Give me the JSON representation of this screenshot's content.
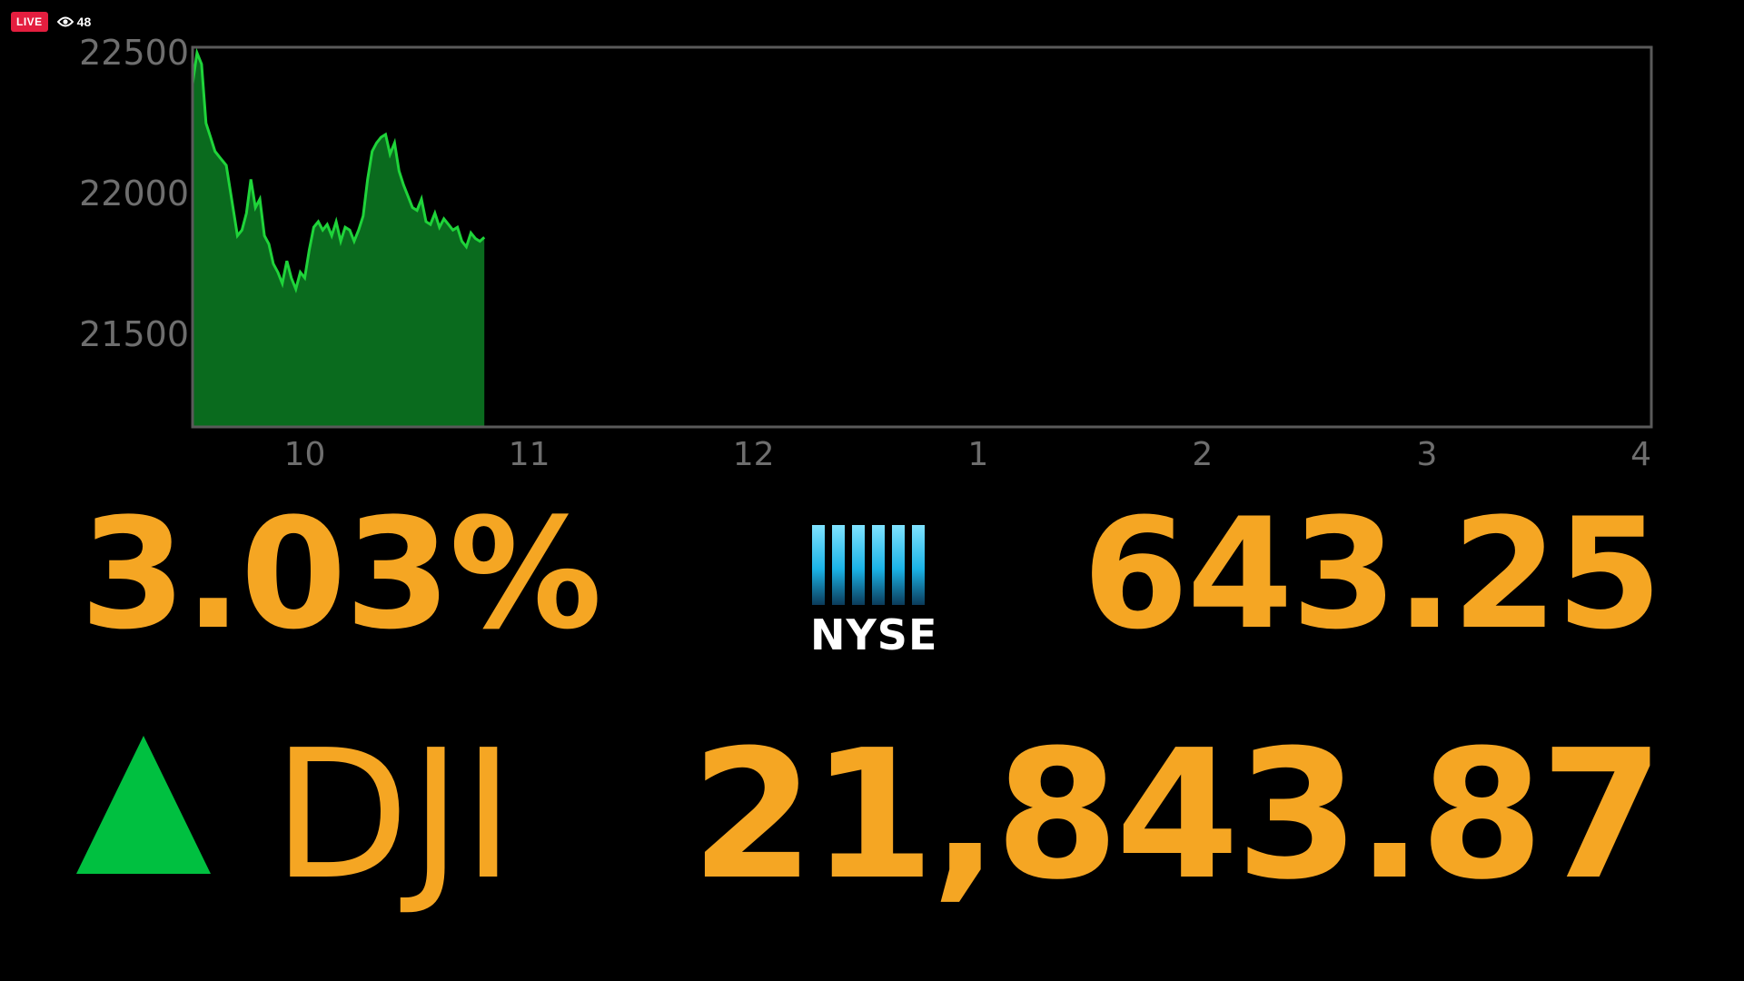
{
  "overlay": {
    "live_label": "LIVE",
    "viewer_count": "48"
  },
  "ticker": {
    "percent_change": "3.03%",
    "exchange_logo_text": "NYSE",
    "point_change": "643.25",
    "symbol": "DJI",
    "price": "21,843.87",
    "direction": "up",
    "up_color": "#00c040",
    "text_color": "#f5a623"
  },
  "chart_data": {
    "type": "area",
    "title": "",
    "xlabel": "",
    "ylabel": "",
    "x_ticks": [
      "10",
      "11",
      "12",
      "1",
      "2",
      "3",
      "4"
    ],
    "x_tick_values": [
      10,
      11,
      12,
      13,
      14,
      15,
      16
    ],
    "y_ticks": [
      "22500",
      "22000",
      "21500"
    ],
    "y_tick_values": [
      22500,
      22000,
      21500
    ],
    "xlim": [
      9.5,
      16
    ],
    "ylim": [
      21170,
      22520
    ],
    "grid": false,
    "fill_color": "#0a6b1e",
    "line_color": "#1fd43a",
    "series": [
      {
        "x": [
          9.5,
          9.52,
          9.54,
          9.56,
          9.58,
          9.6,
          9.62,
          9.65,
          9.68,
          9.7,
          9.72,
          9.74,
          9.76,
          9.78,
          9.8,
          9.82,
          9.84,
          9.86,
          9.88,
          9.9,
          9.92,
          9.94,
          9.96,
          9.98,
          10.0,
          10.02,
          10.04,
          10.06,
          10.08,
          10.1,
          10.12,
          10.14,
          10.16,
          10.18,
          10.2,
          10.22,
          10.24,
          10.26,
          10.28,
          10.3,
          10.32,
          10.34,
          10.36,
          10.38,
          10.4,
          10.42,
          10.44,
          10.46,
          10.48,
          10.5,
          10.52,
          10.54,
          10.56,
          10.58,
          10.6,
          10.62,
          10.64,
          10.66,
          10.68,
          10.7,
          10.72,
          10.74,
          10.76,
          10.78,
          10.8
        ],
        "y": [
          22390,
          22500,
          22460,
          22250,
          22200,
          22150,
          22130,
          22100,
          21950,
          21850,
          21870,
          21930,
          22050,
          21950,
          21980,
          21850,
          21820,
          21750,
          21720,
          21680,
          21760,
          21700,
          21660,
          21720,
          21700,
          21800,
          21880,
          21900,
          21870,
          21890,
          21850,
          21900,
          21830,
          21880,
          21870,
          21830,
          21870,
          21920,
          22050,
          22150,
          22180,
          22200,
          22210,
          22140,
          22180,
          22080,
          22030,
          21990,
          21950,
          21940,
          21980,
          21900,
          21890,
          21930,
          21880,
          21910,
          21890,
          21870,
          21880,
          21830,
          21810,
          21860,
          21840,
          21830,
          21843.87
        ]
      }
    ]
  }
}
